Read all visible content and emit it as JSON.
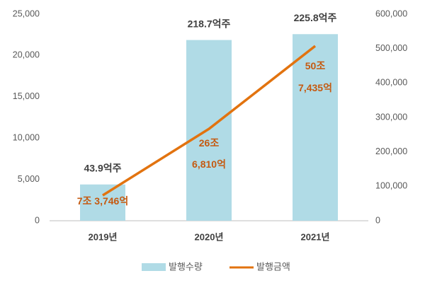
{
  "chart_data": {
    "type": "bar-line",
    "categories": [
      "2019년",
      "2020년",
      "2021년"
    ],
    "series": [
      {
        "name": "발행수량",
        "type": "bar",
        "color": "#b0dbe6",
        "values": [
          4390,
          21870,
          22580
        ],
        "value_labels": [
          "43.9억주",
          "218.7억주",
          "225.8억주"
        ]
      },
      {
        "name": "발행금액",
        "type": "line",
        "axis": "y2",
        "color": "#e2730f",
        "values": [
          73746,
          266810,
          507435
        ],
        "value_labels": [
          [
            "7조 3,746억"
          ],
          [
            "26조",
            "6,810억"
          ],
          [
            "50조",
            "7,435억"
          ]
        ]
      }
    ],
    "ylim": [
      0,
      25000
    ],
    "yticks": [
      0,
      {
        "value": 5000,
        "label": "5,000"
      },
      {
        "value": 10000,
        "label": "10,000"
      },
      {
        "value": 15000,
        "label": "15,000"
      },
      {
        "value": 20000,
        "label": "20,000"
      },
      {
        "value": 25000,
        "label": "25,000"
      }
    ],
    "y2lim": [
      0,
      600000
    ],
    "y2ticks": [
      0,
      {
        "value": 100000,
        "label": "100,000"
      },
      {
        "value": 200000,
        "label": "200,000"
      },
      {
        "value": 300000,
        "label": "300,000"
      },
      {
        "value": 400000,
        "label": "400,000"
      },
      {
        "value": 500000,
        "label": "500,000"
      },
      {
        "value": 600000,
        "label": "600,000"
      }
    ],
    "legend": "bottom"
  }
}
